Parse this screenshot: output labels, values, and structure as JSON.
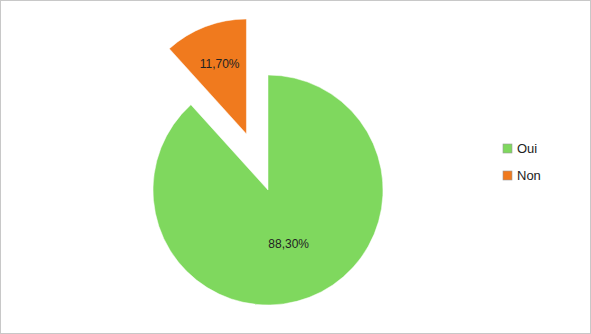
{
  "chart_data": {
    "type": "pie",
    "categories": [
      "Oui",
      "Non"
    ],
    "values": [
      88.3,
      11.7
    ],
    "value_labels": [
      "88,30%",
      "11,70%"
    ],
    "colors": [
      "#7fd85e",
      "#f07a1e"
    ],
    "legend": "right",
    "data_labels": true
  }
}
